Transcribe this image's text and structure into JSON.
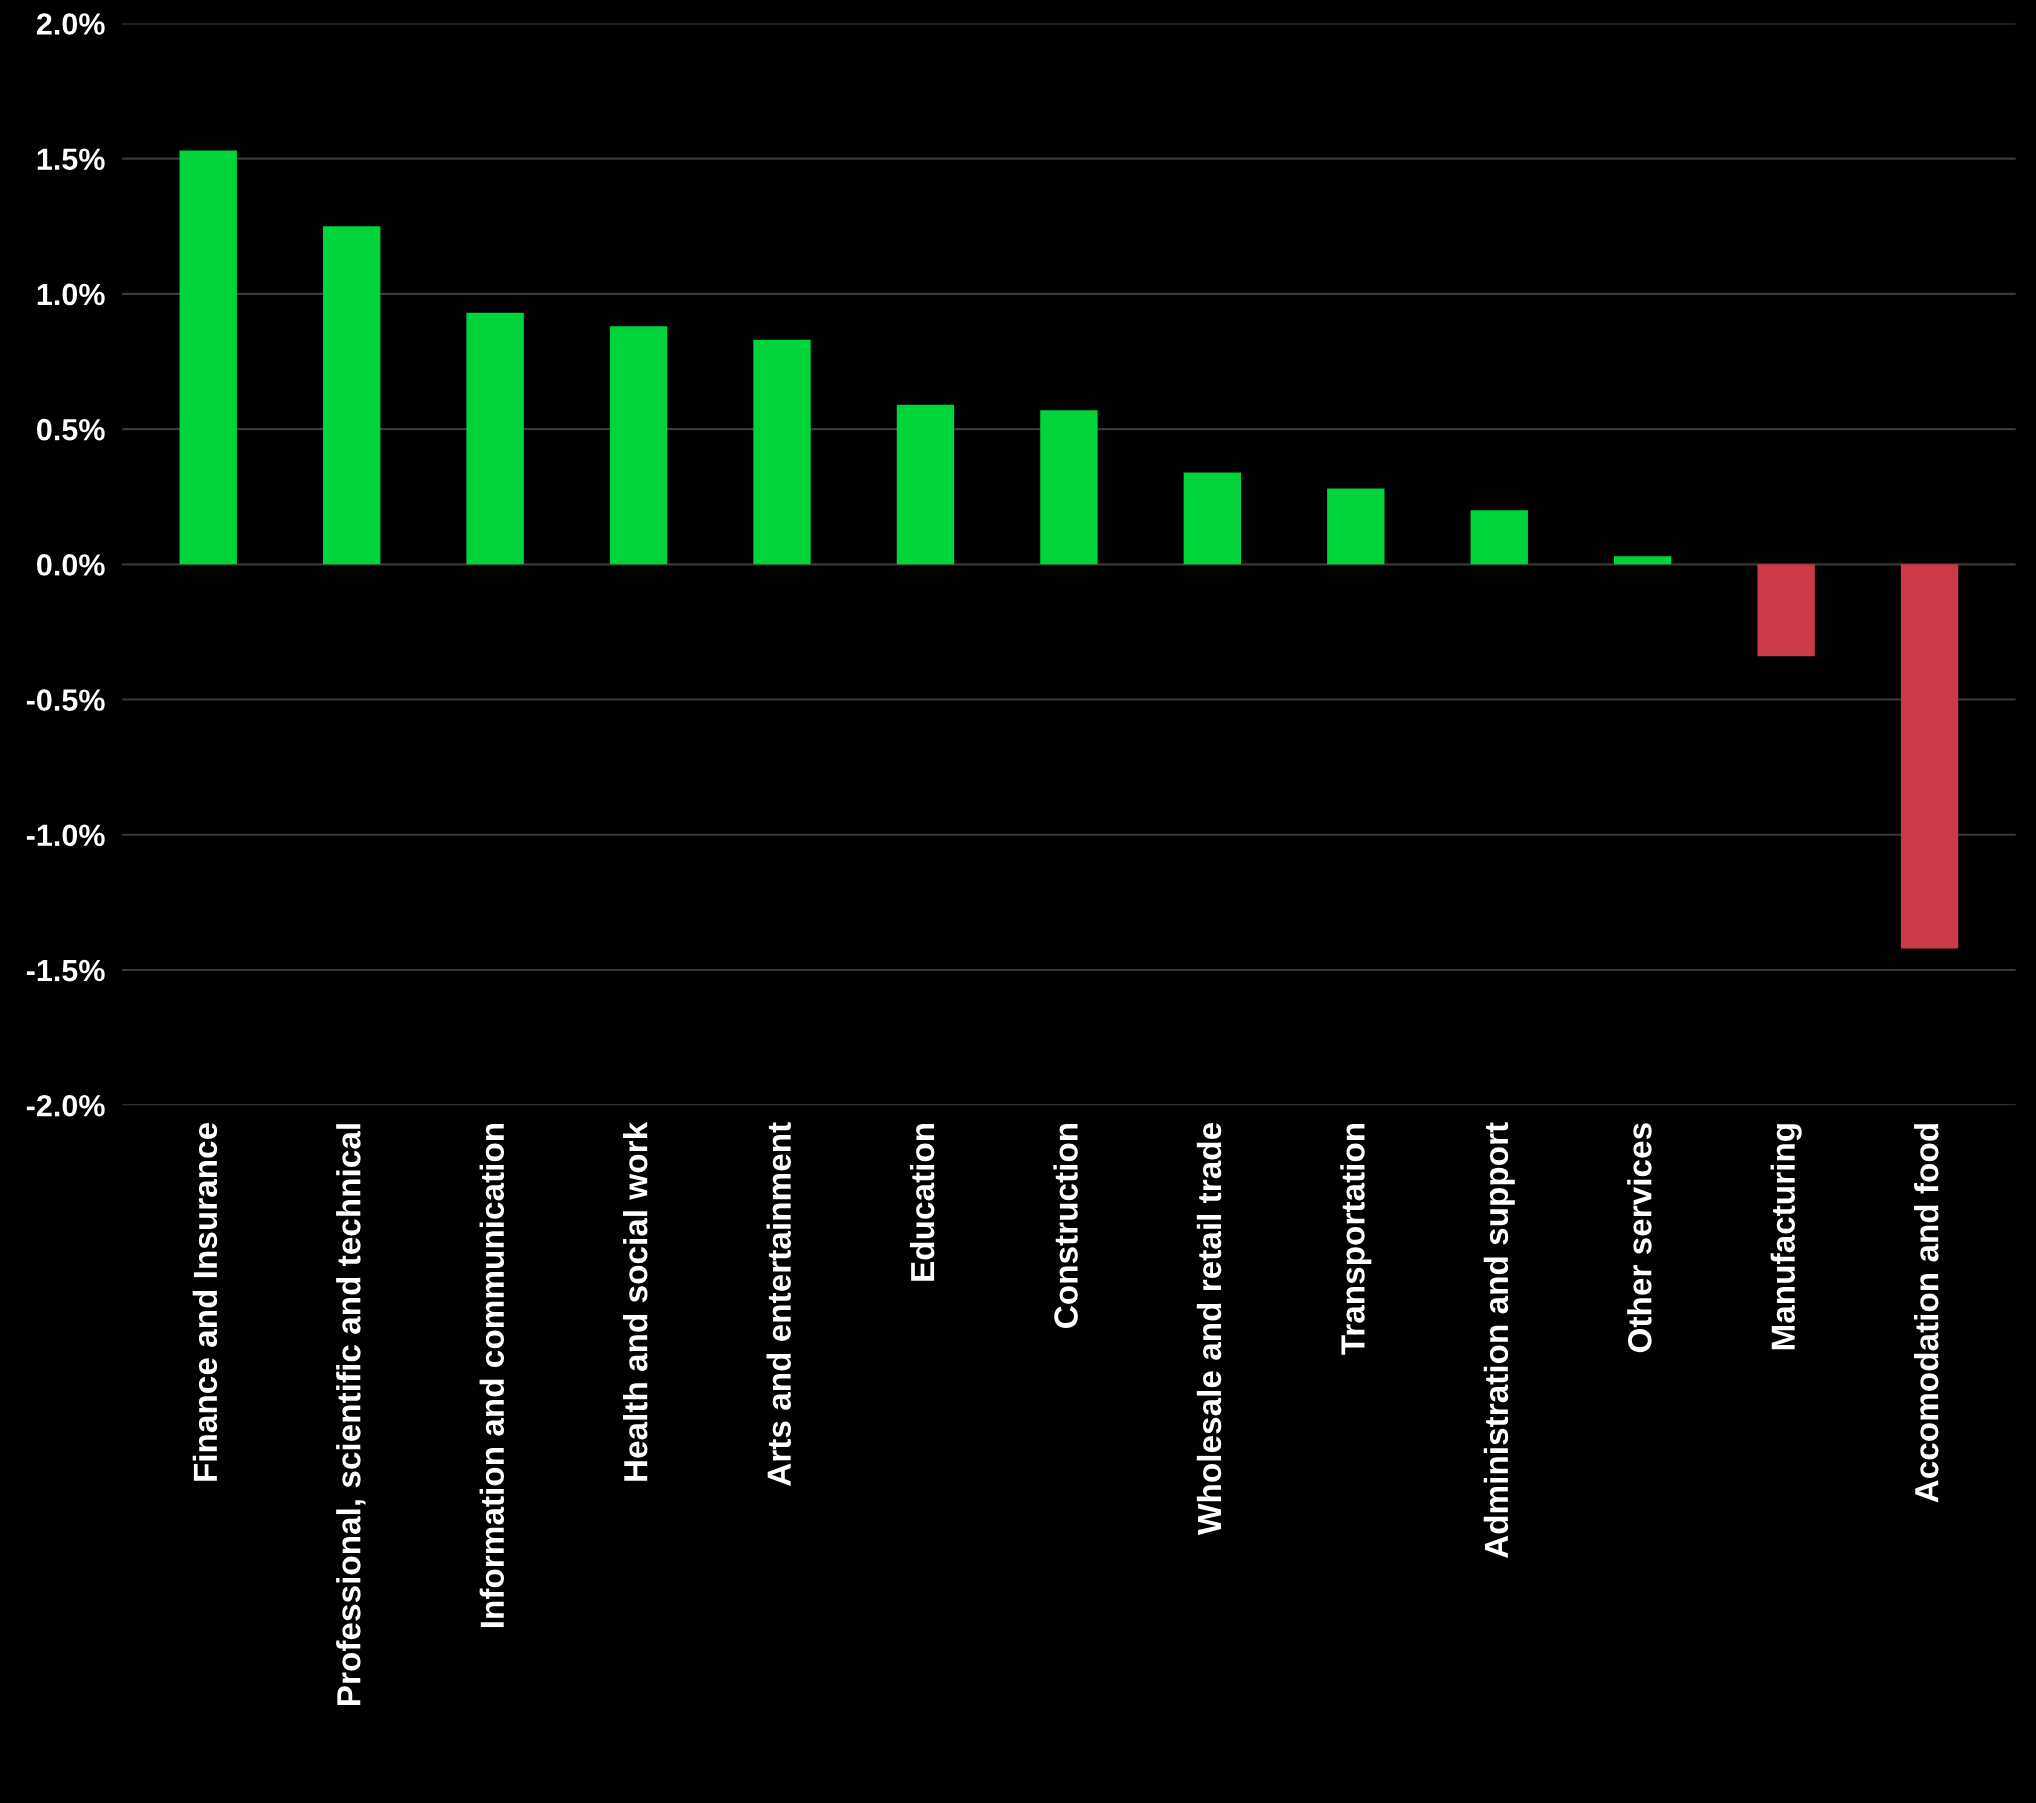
{
  "chart_data": {
    "type": "bar",
    "categories": [
      "Finance and Insurance",
      "Professional, scientific and technical",
      "Information and communication",
      "Health and social work",
      "Arts and entertainment",
      "Education",
      "Construction",
      "Wholesale and retail trade",
      "Transportation",
      "Administration and support",
      "Other services",
      "Manufacturing",
      "Accomodation and food"
    ],
    "values": [
      1.53,
      1.25,
      0.93,
      0.88,
      0.83,
      0.59,
      0.57,
      0.34,
      0.28,
      0.2,
      0.03,
      -0.34,
      -1.42
    ],
    "colors": [
      "#00d43a",
      "#00d43a",
      "#00d43a",
      "#00d43a",
      "#00d43a",
      "#00d43a",
      "#00d43a",
      "#00d43a",
      "#00d43a",
      "#00d43a",
      "#00d43a",
      "#cc3a4a",
      "#cc3a4a"
    ],
    "ylim": [
      -2.0,
      2.0
    ],
    "yticks": [
      {
        "value": -2.0,
        "label": "-2.0%"
      },
      {
        "value": -1.5,
        "label": "-1.5%"
      },
      {
        "value": -1.0,
        "label": "-1.0%"
      },
      {
        "value": -0.5,
        "label": "-0.5%"
      },
      {
        "value": 0.0,
        "label": "0.0%"
      },
      {
        "value": 0.5,
        "label": "0.5%"
      },
      {
        "value": 1.0,
        "label": "1.0%"
      },
      {
        "value": 1.5,
        "label": "1.5%"
      },
      {
        "value": 2.0,
        "label": "2.0%"
      }
    ],
    "grid": "y",
    "legend": false
  }
}
